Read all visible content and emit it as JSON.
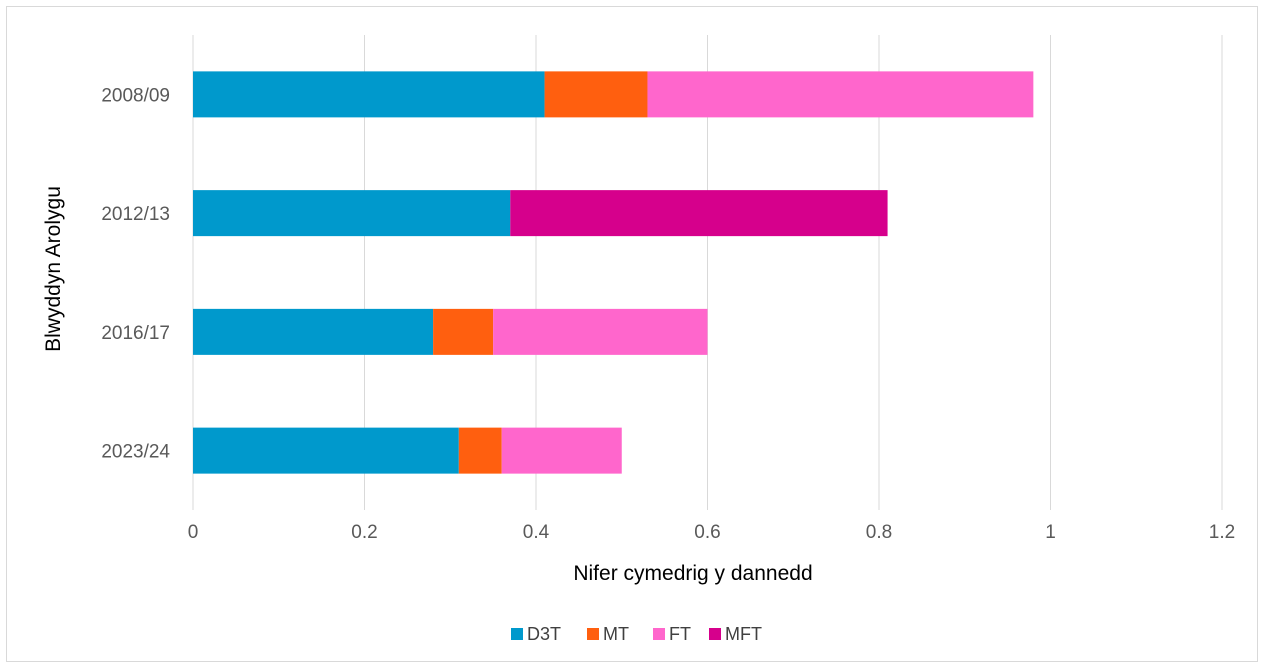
{
  "chart_data": {
    "type": "bar",
    "orientation": "horizontal",
    "stacked": true,
    "categories": [
      "2008/09",
      "2012/13",
      "2016/17",
      "2023/24"
    ],
    "series": [
      {
        "name": "D3T",
        "color": "#0099cc",
        "values": [
          0.41,
          0.37,
          0.28,
          0.31
        ]
      },
      {
        "name": "MT",
        "color": "#ff5f0f",
        "values": [
          0.12,
          0,
          0.07,
          0.05
        ]
      },
      {
        "name": "FT",
        "color": "#ff66cc",
        "values": [
          0.45,
          0,
          0.25,
          0.14
        ]
      },
      {
        "name": "MFT",
        "color": "#d6008c",
        "values": [
          0,
          0.44,
          0,
          0
        ]
      }
    ],
    "xlabel": "Nifer cymedrig y dannedd",
    "ylabel": "Blwyddyn Arolygu",
    "xlim": [
      0,
      1.2
    ],
    "xticks": [
      "0",
      "0.2",
      "0.4",
      "0.6",
      "0.8",
      "1",
      "1.2"
    ],
    "grid": "vertical",
    "legend_position": "bottom"
  }
}
